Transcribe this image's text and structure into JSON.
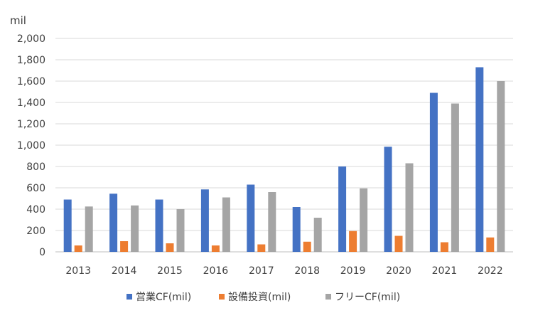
{
  "chart_data": {
    "type": "bar",
    "ylabel": "mil",
    "ylim": [
      0,
      2000
    ],
    "yticks": [
      "0",
      "200",
      "400",
      "600",
      "800",
      "1,000",
      "1,200",
      "1,400",
      "1,600",
      "1,800",
      "2,000"
    ],
    "categories": [
      "2013",
      "2014",
      "2015",
      "2016",
      "2017",
      "2018",
      "2019",
      "2020",
      "2021",
      "2022"
    ],
    "series": [
      {
        "name": "営業CF(mil)",
        "color": "#4472C4",
        "values": [
          490,
          545,
          490,
          585,
          630,
          420,
          800,
          985,
          1490,
          1730
        ]
      },
      {
        "name": "設備投資(mil)",
        "color": "#ED7D31",
        "values": [
          60,
          100,
          80,
          60,
          70,
          95,
          195,
          150,
          90,
          135
        ]
      },
      {
        "name": "フリーCF(mil)",
        "color": "#A5A5A5",
        "values": [
          425,
          435,
          400,
          510,
          560,
          320,
          595,
          830,
          1390,
          1600
        ]
      }
    ],
    "grid": true,
    "legend_position": "bottom"
  }
}
